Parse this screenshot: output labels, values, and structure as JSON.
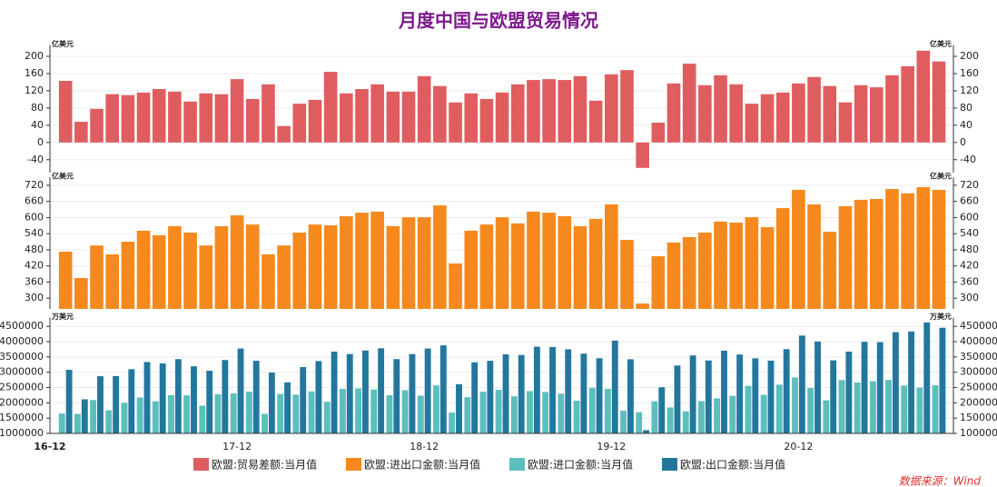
{
  "title": "月度中国与欧盟贸易情况",
  "source": "数据来源：Wind",
  "chart_data": [
    {
      "type": "bar",
      "unit": "亿美元",
      "ylim": [
        -70,
        220
      ],
      "yticks": [
        -40,
        0,
        40,
        80,
        120,
        160,
        200
      ],
      "grid": true,
      "series": [
        {
          "name": "欧盟:贸易差额:当月值",
          "color": "#e05d5f",
          "values": [
            null,
            143,
            48,
            78,
            112,
            110,
            116,
            124,
            118,
            95,
            114,
            112,
            147,
            101,
            135,
            38,
            90,
            99,
            164,
            114,
            124,
            135,
            118,
            118,
            154,
            131,
            93,
            114,
            101,
            116,
            135,
            145,
            147,
            145,
            154,
            97,
            158,
            168,
            -59,
            46,
            137,
            183,
            133,
            156,
            135,
            90,
            112,
            116,
            137,
            152,
            131,
            93,
            133,
            128,
            156,
            177,
            213,
            188
          ]
        }
      ]
    },
    {
      "type": "bar",
      "unit": "亿美元",
      "ylim": [
        260,
        740
      ],
      "yticks": [
        300,
        360,
        420,
        480,
        540,
        600,
        660,
        720
      ],
      "grid": true,
      "series": [
        {
          "name": "欧盟:进出口金额:当月值",
          "color": "#f5891e",
          "values": [
            null,
            473,
            375,
            496,
            463,
            510,
            551,
            534,
            568,
            544,
            496,
            568,
            608,
            574,
            463,
            496,
            544,
            574,
            571,
            605,
            618,
            622,
            568,
            601,
            601,
            645,
            429,
            551,
            574,
            601,
            578,
            622,
            618,
            605,
            568,
            595,
            649,
            517,
            280,
            456,
            507,
            527,
            544,
            585,
            581,
            601,
            564,
            635,
            703,
            649,
            547,
            642,
            666,
            669,
            706,
            690,
            713,
            703
          ]
        }
      ]
    },
    {
      "type": "bar",
      "unit": "万美元",
      "ylim": [
        1000000,
        4700000
      ],
      "yticks": [
        1000000,
        1500000,
        2000000,
        2500000,
        3000000,
        3500000,
        4000000,
        4500000
      ],
      "grid": true,
      "categories": [
        "16-12",
        null,
        null,
        null,
        null,
        null,
        null,
        null,
        null,
        null,
        null,
        null,
        "17-12",
        null,
        null,
        null,
        null,
        null,
        null,
        null,
        null,
        null,
        null,
        null,
        "18-12",
        null,
        null,
        null,
        null,
        null,
        null,
        null,
        null,
        null,
        null,
        null,
        "19-12",
        null,
        null,
        null,
        null,
        null,
        null,
        null,
        null,
        null,
        null,
        null,
        "20-12",
        null,
        null,
        null,
        null,
        null,
        null,
        null,
        null,
        null
      ],
      "series": [
        {
          "name": "欧盟:进口金额:当月值",
          "color": "#5cbfbd",
          "values": [
            null,
            1650000,
            1635000,
            2090000,
            1755000,
            2000000,
            2175000,
            2050000,
            2250000,
            2245000,
            1910000,
            2280000,
            2305000,
            2365000,
            1640000,
            2290000,
            2270000,
            2375000,
            2035000,
            2455000,
            2470000,
            2435000,
            2250000,
            2415000,
            2235000,
            2570000,
            1680000,
            2185000,
            2365000,
            2425000,
            2215000,
            2385000,
            2355000,
            2300000,
            2070000,
            2490000,
            2455000,
            1745000,
            1695000,
            2050000,
            1850000,
            1720000,
            2055000,
            2145000,
            2230000,
            2555000,
            2260000,
            2595000,
            2830000,
            2485000,
            2080000,
            2745000,
            2665000,
            2705000,
            2750000,
            2565000,
            2500000,
            2575000
          ]
        },
        {
          "name": "欧盟:出口金额:当月值",
          "color": "#23779e",
          "values": [
            null,
            3080000,
            2115000,
            2870000,
            2875000,
            3100000,
            3335000,
            3290000,
            3430000,
            3195000,
            3050000,
            3400000,
            3775000,
            3375000,
            2990000,
            2670000,
            3170000,
            3365000,
            3675000,
            3595000,
            3710000,
            3785000,
            3430000,
            3595000,
            3775000,
            3880000,
            2610000,
            3325000,
            3375000,
            3585000,
            3565000,
            3835000,
            3825000,
            3750000,
            3610000,
            3460000,
            4035000,
            3425000,
            1105000,
            2510000,
            3220000,
            3550000,
            3385000,
            3705000,
            3580000,
            3455000,
            3380000,
            3755000,
            4200000,
            4005000,
            3390000,
            3675000,
            3995000,
            3985000,
            4310000,
            4335000,
            4630000,
            4455000
          ]
        }
      ]
    }
  ]
}
